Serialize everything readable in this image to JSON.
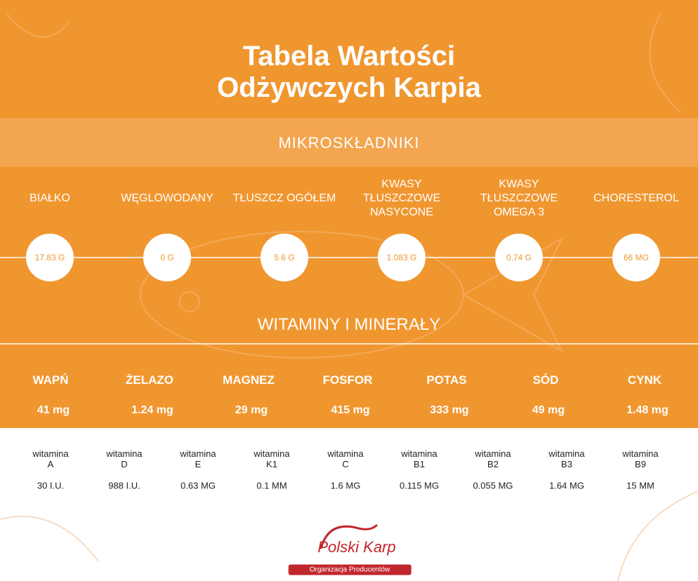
{
  "header": {
    "title": "Tabela Wartości Odżywczych Karpia"
  },
  "micro": {
    "title": "MIKROSKŁADNIKI",
    "items": [
      {
        "label": "BIAŁKO",
        "value": "17.83 G"
      },
      {
        "label": "WĘGLOWODANY",
        "value": "0 G"
      },
      {
        "label": "TŁUSZCZ OGÓŁEM",
        "value": "5.6 G"
      },
      {
        "label": "KWASY\nTŁUSZCZOWE\nNASYCONE",
        "value": "1.083 G"
      },
      {
        "label": "KWASY\nTŁUSZCZOWE\nOMEGA 3",
        "value": "0.74 G"
      },
      {
        "label": "CHORESTEROL",
        "value": "66 MG"
      }
    ]
  },
  "minerals": {
    "title": "WITAMINY I MINERAŁY",
    "items": [
      {
        "label": "WAPŃ",
        "value": "41 mg"
      },
      {
        "label": "ŻELAZO",
        "value": "1.24 mg"
      },
      {
        "label": "MAGNEZ",
        "value": "29 mg"
      },
      {
        "label": "FOSFOR",
        "value": "415 mg"
      },
      {
        "label": "POTAS",
        "value": "333 mg"
      },
      {
        "label": "SÓD",
        "value": "49 mg"
      },
      {
        "label": "CYNK",
        "value": "1.48 mg"
      }
    ]
  },
  "vitamins": {
    "items": [
      {
        "label": "witamina\nA",
        "value": "30 I.U."
      },
      {
        "label": "witamina\nD",
        "value": "988 I.U."
      },
      {
        "label": "witamina\nE",
        "value": "0.63 MG"
      },
      {
        "label": "witamina\nK1",
        "value": "0.1 MM"
      },
      {
        "label": "witamina\nC",
        "value": "1.6 MG"
      },
      {
        "label": "witamina\nB1",
        "value": "0.115 MG"
      },
      {
        "label": "witamina\nB2",
        "value": "0.055 MG"
      },
      {
        "label": "witamina\nB3",
        "value": "1.64 MG"
      },
      {
        "label": "witamina\nB9",
        "value": "15 MM"
      }
    ]
  },
  "logo": {
    "name": "Polski Karp",
    "subtitle": "Organizacja Producentów"
  }
}
